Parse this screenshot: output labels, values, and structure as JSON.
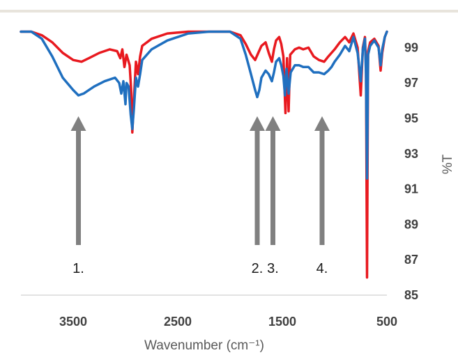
{
  "chart_data": {
    "type": "line",
    "title": "",
    "xlabel": "Wavenumber (cm⁻¹)",
    "ylabel": "%T",
    "xlim": [
      4000,
      500
    ],
    "ylim": [
      85,
      100
    ],
    "x_ticks": [
      "3500",
      "2500",
      "1500",
      "500"
    ],
    "x_tick_values": [
      3500,
      2500,
      1500,
      500
    ],
    "y_ticks": [
      "85",
      "87",
      "89",
      "91",
      "93",
      "95",
      "97",
      "99"
    ],
    "y_tick_values": [
      85,
      87,
      89,
      91,
      93,
      95,
      97,
      99
    ],
    "y_axis_side": "right",
    "grid": false,
    "legend": "none",
    "series": [
      {
        "color": "#e8191f",
        "points": [
          [
            4000,
            99.9
          ],
          [
            3900,
            99.9
          ],
          [
            3800,
            99.7
          ],
          [
            3700,
            99.3
          ],
          [
            3600,
            98.7
          ],
          [
            3500,
            98.3
          ],
          [
            3420,
            98.2
          ],
          [
            3350,
            98.4
          ],
          [
            3250,
            98.7
          ],
          [
            3150,
            98.9
          ],
          [
            3080,
            98.8
          ],
          [
            3050,
            98.4
          ],
          [
            3030,
            98.9
          ],
          [
            3010,
            97.9
          ],
          [
            2990,
            98.6
          ],
          [
            2960,
            98.0
          ],
          [
            2945,
            96.5
          ],
          [
            2935,
            94.2
          ],
          [
            2920,
            96.0
          ],
          [
            2900,
            98.2
          ],
          [
            2880,
            97.5
          ],
          [
            2860,
            98.5
          ],
          [
            2840,
            99.1
          ],
          [
            2750,
            99.5
          ],
          [
            2600,
            99.8
          ],
          [
            2400,
            99.9
          ],
          [
            2200,
            99.9
          ],
          [
            2000,
            99.9
          ],
          [
            1900,
            99.7
          ],
          [
            1850,
            99.2
          ],
          [
            1800,
            98.6
          ],
          [
            1760,
            98.3
          ],
          [
            1730,
            98.7
          ],
          [
            1700,
            99.1
          ],
          [
            1660,
            99.3
          ],
          [
            1630,
            98.7
          ],
          [
            1600,
            98.2
          ],
          [
            1580,
            98.9
          ],
          [
            1560,
            99.4
          ],
          [
            1530,
            99.6
          ],
          [
            1510,
            99.2
          ],
          [
            1490,
            98.5
          ],
          [
            1470,
            95.3
          ],
          [
            1455,
            98.4
          ],
          [
            1440,
            95.4
          ],
          [
            1425,
            98.6
          ],
          [
            1380,
            98.9
          ],
          [
            1340,
            99.0
          ],
          [
            1300,
            98.9
          ],
          [
            1250,
            99.0
          ],
          [
            1200,
            98.5
          ],
          [
            1150,
            98.3
          ],
          [
            1100,
            98.2
          ],
          [
            1060,
            98.5
          ],
          [
            1030,
            98.7
          ],
          [
            1000,
            98.9
          ],
          [
            950,
            99.3
          ],
          [
            900,
            99.6
          ],
          [
            860,
            99.3
          ],
          [
            820,
            99.8
          ],
          [
            780,
            99.0
          ],
          [
            750,
            96.3
          ],
          [
            730,
            99.0
          ],
          [
            710,
            99.6
          ],
          [
            700,
            98.0
          ],
          [
            690,
            86.0
          ],
          [
            680,
            98.8
          ],
          [
            660,
            99.3
          ],
          [
            620,
            99.5
          ],
          [
            580,
            99.1
          ],
          [
            560,
            97.7
          ],
          [
            545,
            98.7
          ],
          [
            520,
            99.6
          ],
          [
            500,
            99.9
          ]
        ]
      },
      {
        "color": "#1f6fbf",
        "points": [
          [
            4000,
            99.9
          ],
          [
            3900,
            99.9
          ],
          [
            3800,
            99.5
          ],
          [
            3700,
            98.5
          ],
          [
            3600,
            97.3
          ],
          [
            3500,
            96.6
          ],
          [
            3450,
            96.3
          ],
          [
            3400,
            96.4
          ],
          [
            3300,
            96.8
          ],
          [
            3200,
            97.1
          ],
          [
            3100,
            97.3
          ],
          [
            3060,
            97.0
          ],
          [
            3040,
            96.4
          ],
          [
            3020,
            97.1
          ],
          [
            3000,
            95.8
          ],
          [
            2990,
            97.0
          ],
          [
            2970,
            96.8
          ],
          [
            2950,
            95.2
          ],
          [
            2935,
            94.4
          ],
          [
            2920,
            95.5
          ],
          [
            2900,
            97.3
          ],
          [
            2880,
            96.8
          ],
          [
            2860,
            97.5
          ],
          [
            2840,
            98.3
          ],
          [
            2750,
            98.9
          ],
          [
            2600,
            99.4
          ],
          [
            2400,
            99.8
          ],
          [
            2200,
            99.9
          ],
          [
            2000,
            99.9
          ],
          [
            1900,
            99.5
          ],
          [
            1850,
            98.6
          ],
          [
            1800,
            97.5
          ],
          [
            1760,
            96.6
          ],
          [
            1740,
            96.2
          ],
          [
            1720,
            96.6
          ],
          [
            1700,
            97.3
          ],
          [
            1660,
            97.7
          ],
          [
            1630,
            97.5
          ],
          [
            1600,
            97.1
          ],
          [
            1580,
            97.6
          ],
          [
            1560,
            98.2
          ],
          [
            1530,
            98.4
          ],
          [
            1510,
            98.0
          ],
          [
            1490,
            97.4
          ],
          [
            1475,
            96.3
          ],
          [
            1460,
            97.8
          ],
          [
            1440,
            96.4
          ],
          [
            1420,
            97.6
          ],
          [
            1380,
            98.0
          ],
          [
            1340,
            98.0
          ],
          [
            1300,
            97.9
          ],
          [
            1250,
            97.9
          ],
          [
            1200,
            97.6
          ],
          [
            1150,
            97.6
          ],
          [
            1100,
            97.5
          ],
          [
            1060,
            97.7
          ],
          [
            1030,
            97.9
          ],
          [
            1000,
            98.2
          ],
          [
            950,
            98.6
          ],
          [
            900,
            99.1
          ],
          [
            860,
            98.8
          ],
          [
            820,
            99.6
          ],
          [
            780,
            98.7
          ],
          [
            750,
            97.1
          ],
          [
            730,
            98.9
          ],
          [
            710,
            99.5
          ],
          [
            700,
            97.5
          ],
          [
            690,
            91.6
          ],
          [
            680,
            98.6
          ],
          [
            660,
            99.1
          ],
          [
            620,
            99.4
          ],
          [
            580,
            99.0
          ],
          [
            560,
            98.0
          ],
          [
            545,
            98.9
          ],
          [
            520,
            99.6
          ],
          [
            500,
            99.9
          ]
        ]
      }
    ],
    "annotations": [
      {
        "label": "1.",
        "x": 3450
      },
      {
        "label": "2.",
        "x": 1740
      },
      {
        "label": "3.",
        "x": 1590
      },
      {
        "label": "4.",
        "x": 1120
      }
    ]
  }
}
